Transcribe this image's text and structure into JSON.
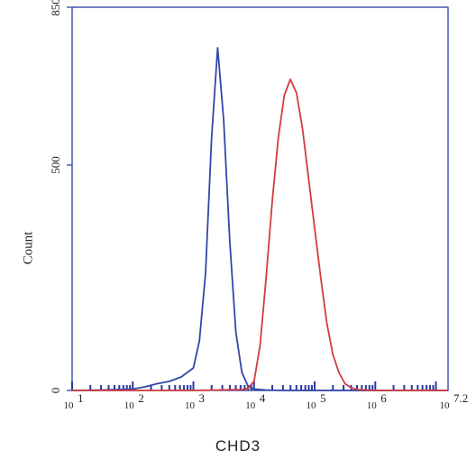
{
  "chart_data": {
    "type": "line",
    "title": "",
    "xlabel": "CHD3",
    "ylabel": "Count",
    "x_scale": "log",
    "xlim": [
      1.0,
      7.2
    ],
    "ylim": [
      0,
      850
    ],
    "x_ticks": [
      {
        "value": 1.0,
        "label": "10",
        "sup": "1"
      },
      {
        "value": 2.0,
        "label": "10",
        "sup": "2"
      },
      {
        "value": 3.0,
        "label": "10",
        "sup": "3"
      },
      {
        "value": 4.0,
        "label": "10",
        "sup": "4"
      },
      {
        "value": 5.0,
        "label": "10",
        "sup": "5"
      },
      {
        "value": 6.0,
        "label": "10",
        "sup": "6"
      },
      {
        "value": 7.2,
        "label": "10",
        "sup": "7.2"
      }
    ],
    "y_ticks": [
      {
        "value": 0,
        "label": "0"
      },
      {
        "value": 500,
        "label": "500"
      },
      {
        "value": 850,
        "label": "850"
      }
    ],
    "grid": false,
    "series": [
      {
        "color": "#3346a8",
        "x": [
          1.0,
          1.5,
          2.0,
          2.2,
          2.4,
          2.6,
          2.8,
          3.0,
          3.1,
          3.2,
          3.3,
          3.4,
          3.5,
          3.6,
          3.7,
          3.8,
          3.9,
          4.0,
          4.2,
          4.5,
          5.0,
          6.0,
          7.2
        ],
        "y": [
          0,
          1,
          3,
          8,
          15,
          20,
          30,
          50,
          110,
          260,
          560,
          760,
          600,
          330,
          130,
          40,
          10,
          3,
          1,
          0,
          0,
          0,
          0
        ]
      },
      {
        "color": "#d23c3c",
        "x": [
          1.0,
          3.0,
          3.8,
          3.9,
          4.0,
          4.1,
          4.2,
          4.3,
          4.4,
          4.5,
          4.6,
          4.7,
          4.8,
          4.9,
          5.0,
          5.1,
          5.2,
          5.3,
          5.4,
          5.5,
          5.6,
          5.7,
          6.0,
          7.2
        ],
        "y": [
          0,
          0,
          2,
          5,
          20,
          100,
          250,
          420,
          560,
          655,
          690,
          660,
          580,
          470,
          360,
          250,
          150,
          80,
          40,
          15,
          6,
          2,
          0,
          0
        ]
      }
    ]
  }
}
